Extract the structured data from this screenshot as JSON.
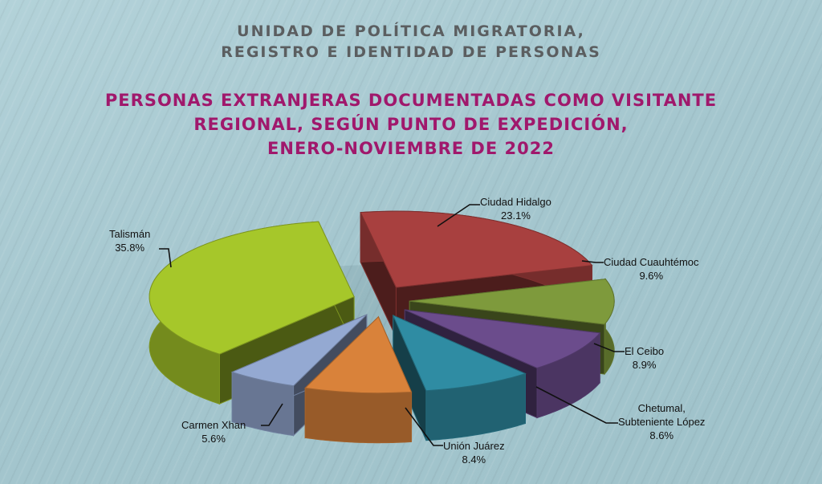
{
  "header": {
    "line1": "UNIDAD DE POLÍTICA MIGRATORIA,",
    "line2": "REGISTRO E IDENTIDAD DE PERSONAS"
  },
  "chart_data": {
    "type": "pie",
    "title_lines": [
      "PERSONAS EXTRANJERAS DOCUMENTADAS COMO VISITANTE",
      "REGIONAL, SEGÚN PUNTO DE EXPEDICIÓN,",
      "ENERO-NOVIEMBRE DE 2022"
    ],
    "style": "3d-exploded",
    "slices": [
      {
        "name": "Ciudad Hidalgo",
        "value": 23.1,
        "label": "23.1%",
        "color": "#a8403f"
      },
      {
        "name": "Ciudad Cuauhtémoc",
        "value": 9.6,
        "label": "9.6%",
        "color": "#7e9a3c"
      },
      {
        "name": "El Ceibo",
        "value": 8.9,
        "label": "8.9%",
        "color": "#6b4c8c"
      },
      {
        "name": "Chetumal, Subteniente López",
        "name_lines": [
          "Chetumal,",
          "Subteniente López"
        ],
        "value": 8.6,
        "label": "8.6%",
        "color": "#2f8ca3"
      },
      {
        "name": "Unión Juárez",
        "value": 8.4,
        "label": "8.4%",
        "color": "#d9823a"
      },
      {
        "name": "Carmen Xhan",
        "value": 5.6,
        "label": "5.6%",
        "color": "#94a9d2"
      },
      {
        "name": "Talismán",
        "value": 35.8,
        "label": "35.8%",
        "color": "#a6c72a"
      }
    ]
  }
}
